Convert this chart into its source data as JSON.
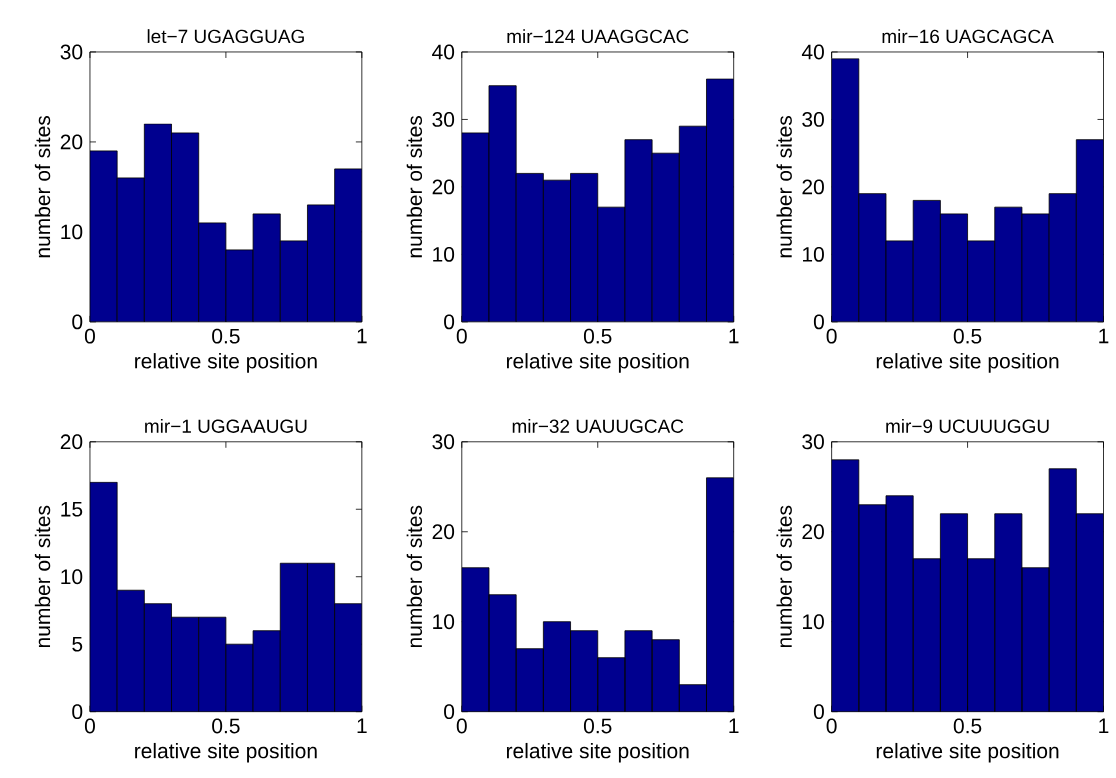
{
  "chart_data": [
    {
      "type": "histogram",
      "title": "let−7 UGAGGUAG",
      "xlabel": "relative site position",
      "ylabel": "number of sites",
      "bins": [
        0,
        0.1,
        0.2,
        0.3,
        0.4,
        0.5,
        0.6,
        0.7,
        0.8,
        0.9,
        1.0
      ],
      "values": [
        19,
        16,
        22,
        21,
        11,
        8,
        12,
        9,
        13,
        17
      ],
      "color": "#00008f",
      "xlim": [
        0,
        1
      ],
      "ylim": [
        0,
        30
      ],
      "xticks": [
        0,
        0.5,
        1
      ],
      "yticks": [
        0,
        10,
        20,
        30
      ]
    },
    {
      "type": "histogram",
      "title": "mir−124 UAAGGCAC",
      "xlabel": "relative site position",
      "ylabel": "number of sites",
      "bins": [
        0,
        0.1,
        0.2,
        0.3,
        0.4,
        0.5,
        0.6,
        0.7,
        0.8,
        0.9,
        1.0
      ],
      "values": [
        28,
        35,
        22,
        21,
        22,
        17,
        27,
        25,
        29,
        36
      ],
      "color": "#00008f",
      "xlim": [
        0,
        1
      ],
      "ylim": [
        0,
        40
      ],
      "xticks": [
        0,
        0.5,
        1
      ],
      "yticks": [
        0,
        10,
        20,
        30,
        40
      ]
    },
    {
      "type": "histogram",
      "title": "mir−16 UAGCAGCA",
      "xlabel": "relative site position",
      "ylabel": "number of sites",
      "bins": [
        0,
        0.1,
        0.2,
        0.3,
        0.4,
        0.5,
        0.6,
        0.7,
        0.8,
        0.9,
        1.0
      ],
      "values": [
        39,
        19,
        12,
        18,
        16,
        12,
        17,
        16,
        19,
        27
      ],
      "color": "#00008f",
      "xlim": [
        0,
        1
      ],
      "ylim": [
        0,
        40
      ],
      "xticks": [
        0,
        0.5,
        1
      ],
      "yticks": [
        0,
        10,
        20,
        30,
        40
      ]
    },
    {
      "type": "histogram",
      "title": "mir−1 UGGAAUGU",
      "xlabel": "relative site position",
      "ylabel": "number of sites",
      "bins": [
        0,
        0.1,
        0.2,
        0.3,
        0.4,
        0.5,
        0.6,
        0.7,
        0.8,
        0.9,
        1.0
      ],
      "values": [
        17,
        9,
        8,
        7,
        7,
        5,
        6,
        11,
        11,
        8
      ],
      "color": "#00008f",
      "xlim": [
        0,
        1
      ],
      "ylim": [
        0,
        20
      ],
      "xticks": [
        0,
        0.5,
        1
      ],
      "yticks": [
        0,
        5,
        10,
        15,
        20
      ]
    },
    {
      "type": "histogram",
      "title": "mir−32 UAUUGCAC",
      "xlabel": "relative site position",
      "ylabel": "number of sites",
      "bins": [
        0,
        0.1,
        0.2,
        0.3,
        0.4,
        0.5,
        0.6,
        0.7,
        0.8,
        0.9,
        1.0
      ],
      "values": [
        16,
        13,
        7,
        10,
        9,
        6,
        9,
        8,
        3,
        26
      ],
      "color": "#00008f",
      "xlim": [
        0,
        1
      ],
      "ylim": [
        0,
        30
      ],
      "xticks": [
        0,
        0.5,
        1
      ],
      "yticks": [
        0,
        10,
        20,
        30
      ]
    },
    {
      "type": "histogram",
      "title": "mir−9 UCUUUGGU",
      "xlabel": "relative site position",
      "ylabel": "number of sites",
      "bins": [
        0,
        0.1,
        0.2,
        0.3,
        0.4,
        0.5,
        0.6,
        0.7,
        0.8,
        0.9,
        1.0
      ],
      "values": [
        28,
        23,
        24,
        17,
        22,
        17,
        22,
        16,
        27,
        22
      ],
      "color": "#00008f",
      "xlim": [
        0,
        1
      ],
      "ylim": [
        0,
        30
      ],
      "xticks": [
        0,
        0.5,
        1
      ],
      "yticks": [
        0,
        10,
        20,
        30
      ]
    }
  ]
}
